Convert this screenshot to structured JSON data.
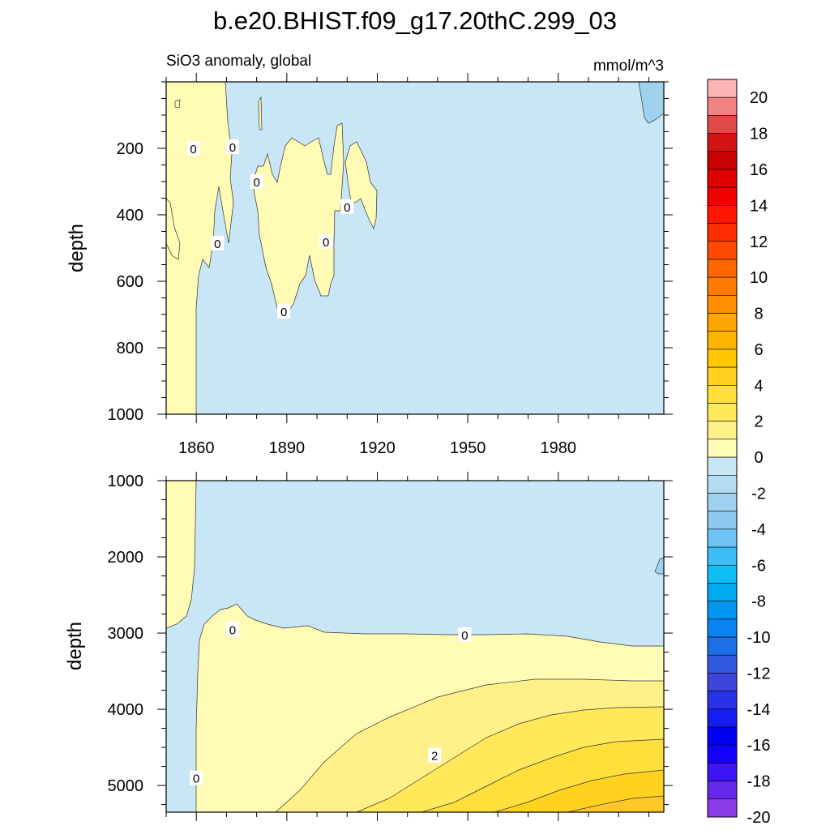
{
  "figure": {
    "title": "b.e20.BHIST.f09_g17.20thC.299_03",
    "subtitle_left": "SiO3 anomaly, global",
    "subtitle_right": "mmol/m^3"
  },
  "chart_data": [
    {
      "type": "heatmap",
      "name": "upper-panel",
      "ylabel": "depth",
      "xlabel": "",
      "xlim": [
        1850,
        2015
      ],
      "ylim": [
        1000,
        0
      ],
      "x_ticks": [
        1860,
        1890,
        1920,
        1950,
        1980
      ],
      "y_ticks": [
        200,
        400,
        600,
        800,
        1000
      ],
      "contour_labels": [
        {
          "text": "0",
          "x": 1859,
          "y": 200
        },
        {
          "text": "0",
          "x": 1872,
          "y": 195
        },
        {
          "text": "0",
          "x": 1880,
          "y": 300
        },
        {
          "text": "0",
          "x": 1867,
          "y": 485
        },
        {
          "text": "0",
          "x": 1889,
          "y": 690
        },
        {
          "text": "0",
          "x": 1903,
          "y": 480
        },
        {
          "text": "0",
          "x": 1910,
          "y": 375
        }
      ]
    },
    {
      "type": "heatmap",
      "name": "lower-panel",
      "ylabel": "depth",
      "xlabel": "",
      "xlim": [
        1850,
        2015
      ],
      "ylim": [
        5350,
        1000
      ],
      "x_ticks": [
        1860,
        1890,
        1920,
        1950,
        1980
      ],
      "y_ticks": [
        1000,
        2000,
        3000,
        4000,
        5000
      ],
      "contour_labels": [
        {
          "text": "0",
          "x": 1872,
          "y": 2950
        },
        {
          "text": "0",
          "x": 1949,
          "y": 3020
        },
        {
          "text": "2",
          "x": 1939,
          "y": 4600
        },
        {
          "text": "0",
          "x": 1860,
          "y": 4900
        }
      ]
    }
  ],
  "colorbar": {
    "labels": [
      "20",
      "18",
      "16",
      "14",
      "12",
      "10",
      "8",
      "6",
      "4",
      "2",
      "0",
      "-2",
      "-4",
      "-6",
      "-8",
      "-10",
      "-12",
      "-14",
      "-16",
      "-18",
      "-20"
    ],
    "colors": [
      "#fcb3b3",
      "#f28383",
      "#e34848",
      "#d21414",
      "#c90000",
      "#e00000",
      "#f00000",
      "#ff1500",
      "#ff2d00",
      "#ff4a00",
      "#ff6600",
      "#ff7a00",
      "#ff8f00",
      "#ffa500",
      "#ffb400",
      "#ffc800",
      "#ffd21e",
      "#ffdf3c",
      "#ffe85a",
      "#fff08a",
      "#fffab4",
      "#c8e6f5",
      "#b4dcf0",
      "#a0d2f0",
      "#8cc8f0",
      "#6ec3f5",
      "#3cbef5",
      "#0fbef5",
      "#00aaf0",
      "#0096f0",
      "#0a82f0",
      "#1e6ee6",
      "#325ae1",
      "#3c46dc",
      "#2832e6",
      "#141ef0",
      "#0000f5",
      "#1400ff",
      "#3c14f5",
      "#6428eb",
      "#8c3ce6"
    ]
  }
}
